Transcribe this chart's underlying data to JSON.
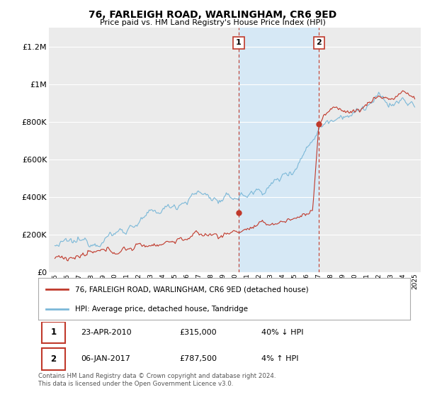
{
  "title": "76, FARLEIGH ROAD, WARLINGHAM, CR6 9ED",
  "subtitle": "Price paid vs. HM Land Registry's House Price Index (HPI)",
  "ylim": [
    0,
    1300000
  ],
  "yticks": [
    0,
    200000,
    400000,
    600000,
    800000,
    1000000,
    1200000
  ],
  "ytick_labels": [
    "£0",
    "£200K",
    "£400K",
    "£600K",
    "£800K",
    "£1M",
    "£1.2M"
  ],
  "bg_color": "#ffffff",
  "plot_bg_color": "#ebebeb",
  "grid_color": "#ffffff",
  "hpi_color": "#7bb8d8",
  "price_color": "#c0392b",
  "highlight_color": "#d6e8f5",
  "dashed_color": "#c0392b",
  "transaction1_x": 2010.31,
  "transaction1_y": 315000,
  "transaction2_x": 2017.02,
  "transaction2_y": 787500,
  "legend_price_label": "76, FARLEIGH ROAD, WARLINGHAM, CR6 9ED (detached house)",
  "legend_hpi_label": "HPI: Average price, detached house, Tandridge",
  "table_rows": [
    {
      "num": "1",
      "date": "23-APR-2010",
      "price": "£315,000",
      "hpi": "40% ↓ HPI"
    },
    {
      "num": "2",
      "date": "06-JAN-2017",
      "price": "£787,500",
      "hpi": "4% ↑ HPI"
    }
  ],
  "footnote": "Contains HM Land Registry data © Crown copyright and database right 2024.\nThis data is licensed under the Open Government Licence v3.0.",
  "xmin": 1994.5,
  "xmax": 2025.5
}
